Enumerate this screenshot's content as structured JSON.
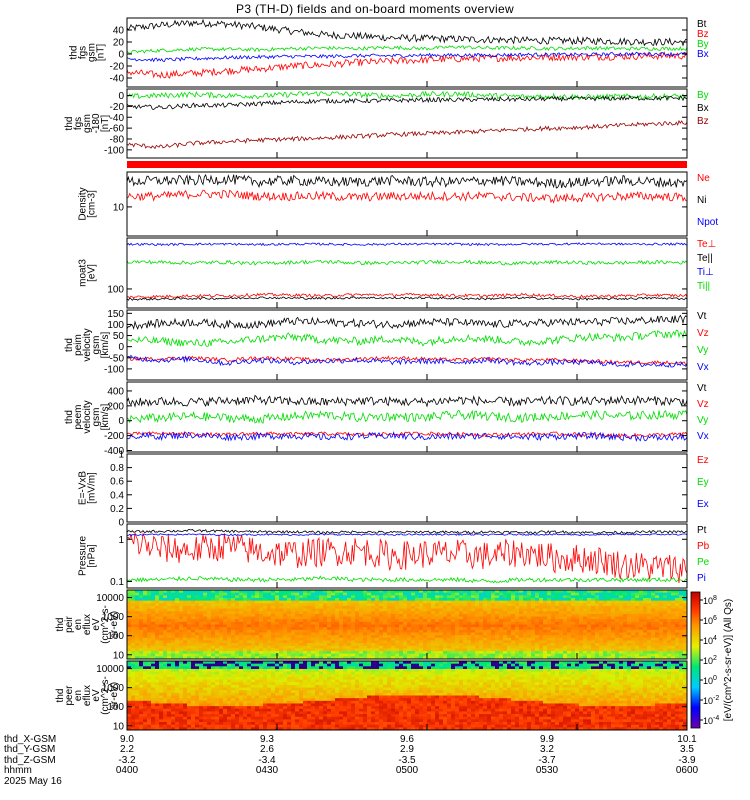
{
  "title": "P3 (TH-D) fields and on-board moments overview",
  "chart_data": [
    {
      "type": "line",
      "ylabel": [
        "thd",
        "fgs",
        "gsm",
        "[nT]"
      ],
      "ylim": [
        -55,
        60
      ],
      "yticks": [
        40,
        20,
        0,
        -20,
        -40
      ],
      "series": [
        {
          "name": "Bt",
          "color": "#000000",
          "values": [
            42,
            48,
            52,
            50,
            45,
            38,
            32,
            30,
            27,
            26,
            25,
            24,
            23,
            22,
            22,
            21,
            20,
            20
          ]
        },
        {
          "name": "Bz",
          "color": "#ff0000",
          "values": [
            -30,
            -35,
            -32,
            -28,
            -25,
            -20,
            -18,
            -14,
            -12,
            -10,
            -8,
            -7,
            -6,
            -5,
            -5,
            -4,
            -3,
            -3
          ]
        },
        {
          "name": "By",
          "color": "#00dd00",
          "values": [
            3,
            6,
            8,
            8,
            7,
            9,
            10,
            9,
            11,
            9,
            12,
            10,
            10,
            9,
            10,
            9,
            9,
            9
          ]
        },
        {
          "name": "Bx",
          "color": "#0000ff",
          "values": [
            -8,
            -10,
            -8,
            -6,
            -5,
            -4,
            -4,
            -3,
            -3,
            -2,
            -2,
            -2,
            -1,
            -1,
            -1,
            0,
            0,
            0
          ]
        }
      ]
    },
    {
      "type": "line",
      "ylabel": [
        "thd",
        "fgs",
        "gsm",
        "-180",
        "[nT]"
      ],
      "ylim": [
        -115,
        12
      ],
      "yticks": [
        0,
        -20,
        -40,
        -60,
        -80,
        -100
      ],
      "series": [
        {
          "name": "By",
          "color": "#00dd00",
          "values": [
            -2,
            0,
            2,
            0,
            -1,
            2,
            4,
            2,
            -1,
            2,
            3,
            0,
            -2,
            -1,
            -3,
            -2,
            -2,
            -1
          ]
        },
        {
          "name": "Bx",
          "color": "#000000",
          "values": [
            -20,
            -22,
            -18,
            -18,
            -15,
            -12,
            -10,
            -10,
            -9,
            -8,
            -8,
            -7,
            -7,
            -6,
            -6,
            -5,
            -5,
            -5
          ]
        },
        {
          "name": "Bz",
          "color": "#990000",
          "values": [
            -90,
            -95,
            -88,
            -85,
            -82,
            -80,
            -78,
            -75,
            -72,
            -70,
            -68,
            -65,
            -62,
            -60,
            -58,
            -55,
            -52,
            -50
          ]
        }
      ]
    },
    {
      "type": "line",
      "ylabel": [
        "Density",
        "[cm-3]"
      ],
      "ylim": [
        4,
        30
      ],
      "yscale": "log",
      "yticks": [
        10
      ],
      "series": [
        {
          "name": "Ne",
          "color": "#ff0000",
          "values": [
            14,
            14,
            15,
            15,
            14,
            14,
            14,
            13.5,
            14,
            14,
            14,
            14,
            13.5,
            13,
            13.5,
            14,
            14,
            13.5
          ]
        },
        {
          "name": "Ni",
          "color": "#000000",
          "values": [
            22,
            23,
            23,
            24,
            22,
            23,
            22,
            22,
            23,
            22,
            22,
            23,
            22,
            21,
            22,
            23,
            22,
            21
          ]
        },
        {
          "name": "Npot",
          "color": "#0000ff",
          "values": []
        }
      ]
    },
    {
      "type": "line",
      "ylabel": [
        "moat3",
        "[eV]"
      ],
      "ylim": [
        30,
        2500
      ],
      "yscale": "log",
      "yticks": [
        100
      ],
      "series": [
        {
          "name": "Te⊥",
          "color": "#ff0000",
          "values": [
            60,
            62,
            65,
            65,
            70,
            68,
            65,
            70,
            68,
            70,
            66,
            65,
            70,
            65,
            62,
            65,
            68,
            65
          ]
        },
        {
          "name": "Te||",
          "color": "#000000",
          "values": [
            52,
            53,
            55,
            55,
            58,
            56,
            55,
            58,
            56,
            57,
            55,
            54,
            57,
            54,
            53,
            54,
            56,
            54
          ]
        },
        {
          "name": "Ti⊥",
          "color": "#0000ff",
          "values": [
            1700,
            1650,
            1700,
            1700,
            1650,
            1700,
            1700,
            1650,
            1700,
            1700,
            1700,
            1650,
            1700,
            1700,
            1750,
            1700,
            1700,
            1700
          ]
        },
        {
          "name": "Ti||",
          "color": "#00dd00",
          "values": [
            560,
            540,
            520,
            540,
            500,
            540,
            560,
            520,
            510,
            540,
            560,
            520,
            500,
            540,
            520,
            520,
            540,
            530
          ]
        }
      ]
    },
    {
      "type": "line",
      "ylabel": [
        "thd",
        "peim",
        "velocity",
        "gsm",
        "[km/s]"
      ],
      "ylim": [
        -150,
        165
      ],
      "yticks": [
        150,
        100,
        50,
        0,
        -50,
        -100
      ],
      "series": [
        {
          "name": "Vt",
          "color": "#000000",
          "values": [
            95,
            105,
            110,
            100,
            100,
            115,
            110,
            105,
            100,
            110,
            110,
            100,
            105,
            110,
            110,
            115,
            120,
            125
          ]
        },
        {
          "name": "Vz",
          "color": "#ff0000",
          "values": [
            -55,
            -55,
            -50,
            -60,
            -50,
            -55,
            -60,
            -55,
            -50,
            -55,
            -60,
            -55,
            -60,
            -60,
            -65,
            -70,
            -70,
            -75
          ]
        },
        {
          "name": "Vy",
          "color": "#00dd00",
          "values": [
            30,
            25,
            15,
            20,
            35,
            45,
            30,
            25,
            35,
            20,
            40,
            35,
            20,
            30,
            45,
            40,
            55,
            60
          ]
        },
        {
          "name": "Vx",
          "color": "#0000ff",
          "values": [
            -50,
            -60,
            -55,
            -75,
            -60,
            -70,
            -65,
            -60,
            -70,
            -65,
            -70,
            -60,
            -75,
            -70,
            -70,
            -80,
            -80,
            -80
          ]
        }
      ]
    },
    {
      "type": "line",
      "ylabel": [
        "thd",
        "peem",
        "velocity",
        "gsm",
        "[km/s]"
      ],
      "ylim": [
        -420,
        520
      ],
      "yticks": [
        400,
        200,
        0,
        -200,
        -400
      ],
      "series": [
        {
          "name": "Vt",
          "color": "#000000",
          "values": [
            240,
            260,
            250,
            270,
            280,
            260,
            250,
            270,
            260,
            250,
            280,
            260,
            250,
            270,
            260,
            280,
            270,
            260
          ]
        },
        {
          "name": "Vz",
          "color": "#ff0000",
          "values": [
            -180,
            -170,
            -180,
            -190,
            -170,
            -180,
            -175,
            -185,
            -180,
            -170,
            -180,
            -190,
            -180,
            -175,
            -190,
            -200,
            -190,
            -180
          ]
        },
        {
          "name": "Vy",
          "color": "#00dd00",
          "values": [
            20,
            40,
            60,
            40,
            20,
            60,
            80,
            40,
            60,
            40,
            80,
            60,
            40,
            60,
            80,
            60,
            80,
            80
          ]
        },
        {
          "name": "Vx",
          "color": "#0000ff",
          "values": [
            -200,
            -210,
            -190,
            -220,
            -210,
            -200,
            -220,
            -210,
            -200,
            -220,
            -210,
            -200,
            -220,
            -210,
            -200,
            -220,
            -230,
            -220
          ]
        }
      ]
    },
    {
      "type": "line",
      "ylabel": [
        "E=-VxB",
        "[mV/m]"
      ],
      "ylim": [
        0,
        1
      ],
      "yticks": [
        1.0,
        0.8,
        0.6,
        0.4,
        0.2,
        0.0
      ],
      "series": [
        {
          "name": "Ez",
          "color": "#ff0000",
          "values": []
        },
        {
          "name": "Ey",
          "color": "#00dd00",
          "values": []
        },
        {
          "name": "Ex",
          "color": "#0000ff",
          "values": []
        }
      ]
    },
    {
      "type": "line",
      "ylabel": [
        "Pressure",
        "[nPa]"
      ],
      "ylim": [
        0.07,
        2.3
      ],
      "yscale": "log",
      "yticks": [
        1.0,
        0.1
      ],
      "series": [
        {
          "name": "Pt",
          "color": "#000000",
          "values": [
            1.5,
            1.55,
            1.6,
            1.55,
            1.5,
            1.5,
            1.45,
            1.5,
            1.45,
            1.5,
            1.45,
            1.5,
            1.45,
            1.5,
            1.45,
            1.45,
            1.5,
            1.5
          ]
        },
        {
          "name": "Pb",
          "color": "#ff0000",
          "values": [
            0.9,
            0.6,
            0.55,
            0.7,
            0.5,
            0.45,
            0.5,
            0.55,
            0.4,
            0.45,
            0.45,
            0.4,
            0.5,
            0.35,
            0.35,
            0.25,
            0.22,
            0.2
          ]
        },
        {
          "name": "Pe",
          "color": "#00dd00",
          "values": [
            0.11,
            0.11,
            0.12,
            0.11,
            0.11,
            0.11,
            0.12,
            0.11,
            0.11,
            0.11,
            0.11,
            0.1,
            0.11,
            0.11,
            0.11,
            0.11,
            0.11,
            0.11
          ]
        },
        {
          "name": "Pi",
          "color": "#0000ff",
          "values": [
            1.25,
            1.3,
            1.3,
            1.28,
            1.3,
            1.28,
            1.3,
            1.3,
            1.28,
            1.3,
            1.3,
            1.28,
            1.3,
            1.3,
            1.28,
            1.3,
            1.3,
            1.3
          ]
        }
      ]
    },
    {
      "type": "heatmap",
      "ylabel": [
        "thd",
        "peir",
        "en",
        "eflux",
        "eV",
        "(cm^2-s-",
        "sr-eV)"
      ],
      "ylim": [
        6,
        25000
      ],
      "yscale": "log",
      "yticks": [
        10000,
        1000,
        100,
        10
      ]
    },
    {
      "type": "heatmap",
      "ylabel": [
        "thd",
        "peer",
        "en",
        "eflux",
        "eV",
        "(cm^2-s-",
        "sr-eV)"
      ],
      "ylim": [
        6,
        25000
      ],
      "yscale": "log",
      "yticks": [
        10000,
        1000,
        100,
        10
      ],
      "colorbar": {
        "label": "[eV/(cm^2-s-sr-eV)] (All Qs)",
        "ticks": [
          "10^8",
          "10^6",
          "10^4",
          "10^2",
          "10^0",
          "10^-2",
          "10^-4"
        ]
      }
    }
  ],
  "x_axis": {
    "ticks_hhmm": [
      "0400",
      "0430",
      "0500",
      "0530",
      "0600"
    ],
    "thd_X_GSM": [
      "9.0",
      "9.3",
      "9.6",
      "9.9",
      "10.1"
    ],
    "thd_Y_GSM": [
      "2.2",
      "2.6",
      "2.9",
      "3.2",
      "3.5"
    ],
    "thd_Z_GSM": [
      "-3.2",
      "-3.4",
      "-3.5",
      "-3.7",
      "-3.9"
    ]
  },
  "footer": {
    "row_labels": [
      "thd_X-GSM",
      "thd_Y-GSM",
      "thd_Z-GSM",
      "hhmm"
    ],
    "date": "2025 May 16"
  }
}
